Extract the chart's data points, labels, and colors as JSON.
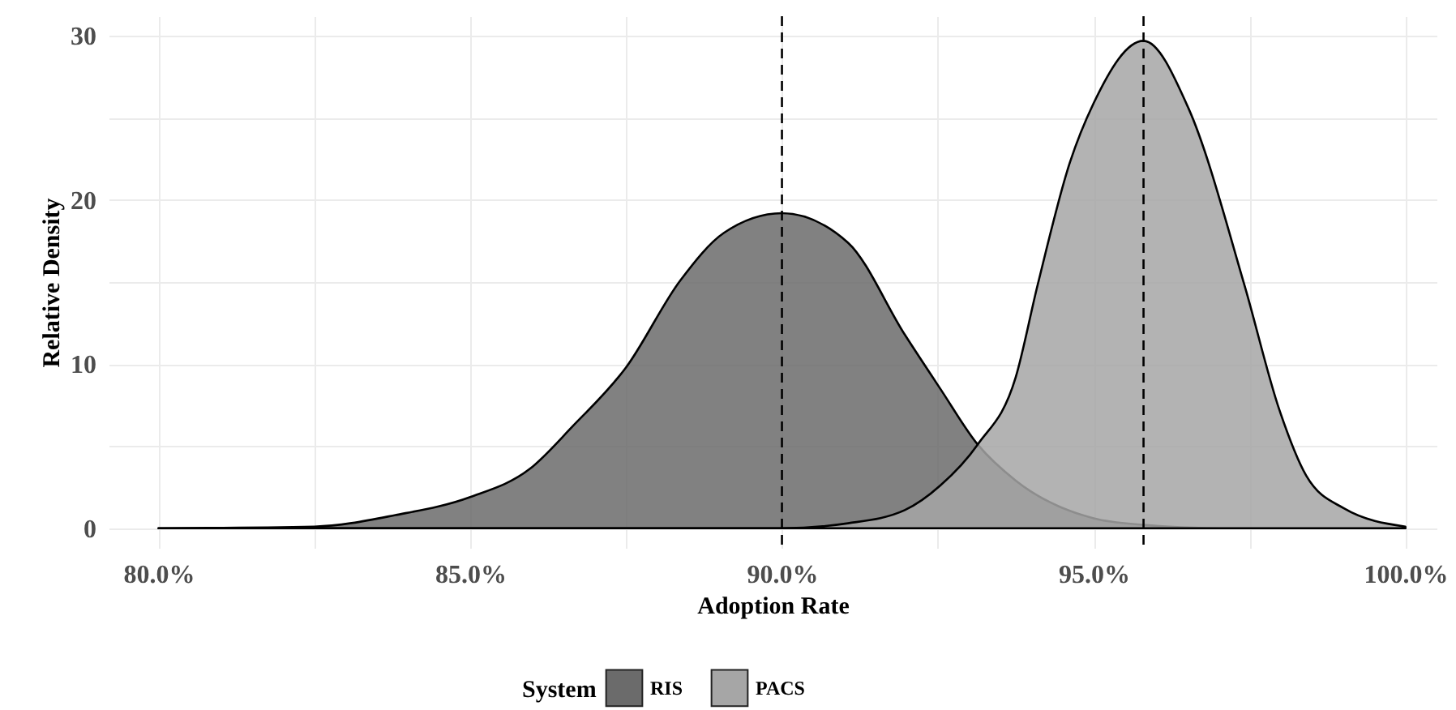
{
  "chart_data": {
    "type": "area",
    "xlabel": "Adoption Rate",
    "ylabel": "Relative Density",
    "legend_title": "System",
    "xlim": [
      79.2,
      100.5
    ],
    "xticks": [
      {
        "value": 80,
        "label": "80.0%"
      },
      {
        "value": 82.5,
        "label": null
      },
      {
        "value": 85,
        "label": "85.0%"
      },
      {
        "value": 87.5,
        "label": null
      },
      {
        "value": 90,
        "label": "90.0%"
      },
      {
        "value": 92.5,
        "label": null
      },
      {
        "value": 95,
        "label": "95.0%"
      },
      {
        "value": 97.5,
        "label": null
      },
      {
        "value": 100,
        "label": "100.0%"
      }
    ],
    "ylim": [
      -1.2,
      31.2
    ],
    "yticks": [
      0,
      {
        "value": 5,
        "label": null
      },
      10,
      {
        "value": 15,
        "label": null
      },
      20,
      {
        "value": 25,
        "label": null
      },
      30
    ],
    "grid": true,
    "legend": "bottom",
    "series": [
      {
        "name": "RIS",
        "color": "#6b6b6b",
        "x": [
          80,
          82.5,
          83.8,
          85,
          85.95,
          86.64,
          87.5,
          88.37,
          89.07,
          90,
          91.06,
          91.97,
          92.54,
          93.14,
          93.75,
          95,
          95.8,
          97,
          100
        ],
        "values": [
          0,
          0.1,
          0.8,
          1.9,
          3.6,
          6.2,
          9.8,
          15.1,
          18,
          19.2,
          17.4,
          11.8,
          8.5,
          5.1,
          2.9,
          0.6,
          0.2,
          0,
          0
        ]
      },
      {
        "name": "PACS",
        "color": "#a6a6a6",
        "x": [
          80,
          90,
          91.06,
          91.97,
          92.54,
          93.14,
          93.75,
          94.1,
          94.62,
          95,
          95.8,
          96.52,
          97.42,
          97.98,
          98.41,
          99.02,
          100
        ],
        "values": [
          0,
          0,
          0.3,
          1.1,
          2.6,
          5.1,
          9.2,
          14.8,
          22.3,
          25.9,
          29.7,
          25.6,
          14.8,
          7.2,
          3.2,
          1.2,
          0.1
        ]
      }
    ],
    "ref_lines": [
      {
        "axis": "x",
        "value": 90.0,
        "line_style": "dashed"
      },
      {
        "axis": "x",
        "value": 95.8,
        "line_style": "dashed"
      }
    ]
  }
}
